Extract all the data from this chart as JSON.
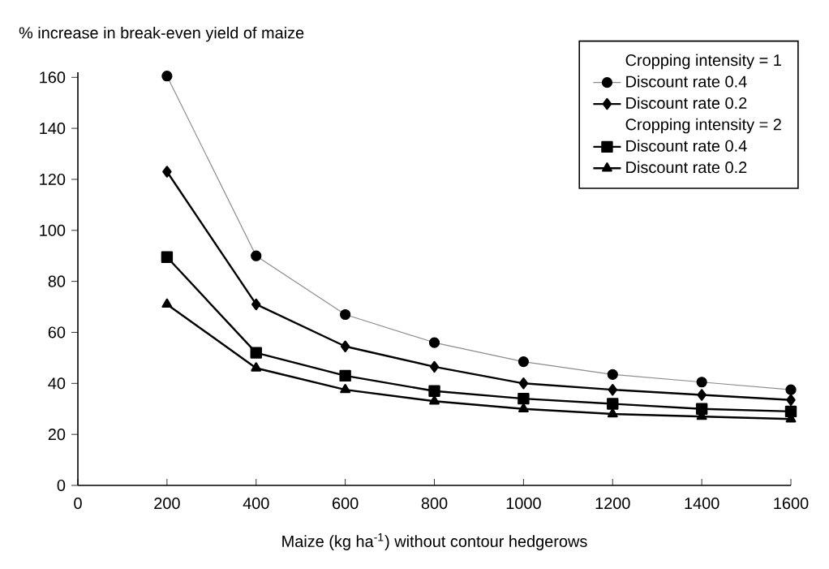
{
  "chart_data": {
    "type": "line",
    "xlabel": "Maize (kg ha$^{-1}$) without contour hedgerows",
    "ylabel": "% increase in break-even yield of maize",
    "x": [
      200,
      400,
      600,
      800,
      1000,
      1200,
      1400,
      1600
    ],
    "xlim": [
      0,
      1600
    ],
    "xticks": [
      0,
      200,
      400,
      600,
      800,
      1000,
      1200,
      1400,
      1600
    ],
    "ylim": [
      0,
      162
    ],
    "yticks": [
      0,
      20,
      40,
      60,
      80,
      100,
      120,
      140,
      160
    ],
    "legend": "top right",
    "grid": false,
    "line_style": "solid",
    "annotations": [
      "Cropping intensity = 1",
      "Cropping intensity = 2"
    ],
    "series": [
      {
        "name": "Discount rate 0.4",
        "color": "#8c8c8c",
        "marker": "circle",
        "values": [
          160.5,
          90,
          67,
          56,
          48.5,
          43.5,
          40.5,
          37.5
        ]
      },
      {
        "name": "Discount rate 0.2",
        "color": "#000000",
        "marker": "diamond",
        "values": [
          123,
          71,
          54.5,
          46.5,
          40,
          37.5,
          35.5,
          33.5
        ]
      },
      {
        "name": "Discount rate 0.4",
        "color": "#000000",
        "marker": "square",
        "values": [
          89.5,
          52,
          43,
          37,
          34,
          32,
          30,
          29
        ]
      },
      {
        "name": "Discount rate 0.2",
        "color": "#000000",
        "marker": "triangle",
        "values": [
          71,
          46,
          37.5,
          33,
          30,
          28,
          27,
          26
        ]
      }
    ]
  }
}
